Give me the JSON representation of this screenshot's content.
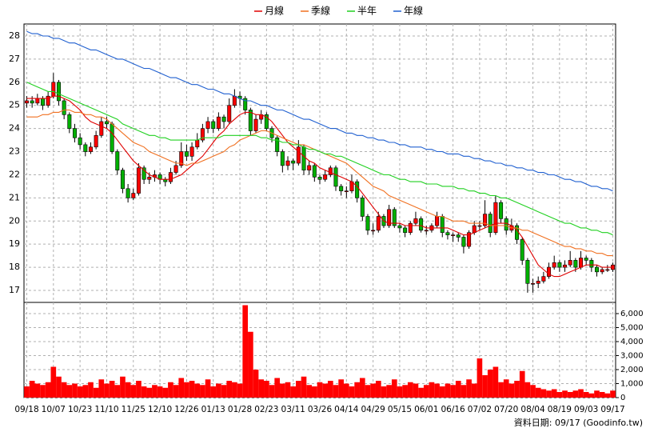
{
  "chart_data": {
    "type": "candlestick",
    "categories": [
      "09/18",
      null,
      null,
      null,
      null,
      "10/07",
      null,
      null,
      null,
      null,
      "10/23",
      null,
      null,
      null,
      null,
      "11/10",
      null,
      null,
      null,
      null,
      "11/25",
      null,
      null,
      null,
      null,
      "12/10",
      null,
      null,
      null,
      null,
      "12/26",
      null,
      null,
      null,
      null,
      "01/13",
      null,
      null,
      null,
      null,
      "01/28",
      null,
      null,
      null,
      null,
      "02/23",
      null,
      null,
      null,
      null,
      "03/11",
      null,
      null,
      null,
      null,
      "03/26",
      null,
      null,
      null,
      null,
      "04/14",
      null,
      null,
      null,
      null,
      "04/29",
      null,
      null,
      null,
      null,
      "05/15",
      null,
      null,
      null,
      null,
      "06/01",
      null,
      null,
      null,
      null,
      "06/16",
      null,
      null,
      null,
      null,
      "07/02",
      null,
      null,
      null,
      null,
      "07/20",
      null,
      null,
      null,
      null,
      "08/04",
      null,
      null,
      null,
      null,
      "08/19",
      null,
      null,
      null,
      null,
      "09/03",
      null,
      null,
      null,
      null,
      "09/17"
    ],
    "candles": [
      [
        25.1,
        25.4,
        24.9,
        25.2
      ],
      [
        25.2,
        25.4,
        24.9,
        25.1
      ],
      [
        25.1,
        25.5,
        25.0,
        25.3
      ],
      [
        25.3,
        25.4,
        24.8,
        25.0
      ],
      [
        25.0,
        25.6,
        24.9,
        25.4
      ],
      [
        25.4,
        26.4,
        25.3,
        26.0
      ],
      [
        26.0,
        26.1,
        25.0,
        25.2
      ],
      [
        25.2,
        25.3,
        24.4,
        24.6
      ],
      [
        24.6,
        24.7,
        23.8,
        24.0
      ],
      [
        24.0,
        24.2,
        23.4,
        23.6
      ],
      [
        23.6,
        23.8,
        23.1,
        23.3
      ],
      [
        23.3,
        23.4,
        22.8,
        23.0
      ],
      [
        23.0,
        23.4,
        22.9,
        23.2
      ],
      [
        23.2,
        23.9,
        23.1,
        23.7
      ],
      [
        23.7,
        24.5,
        23.6,
        24.3
      ],
      [
        24.3,
        24.5,
        24.0,
        24.2
      ],
      [
        24.2,
        24.3,
        22.9,
        23.0
      ],
      [
        23.0,
        23.1,
        22.0,
        22.2
      ],
      [
        22.2,
        22.3,
        21.2,
        21.4
      ],
      [
        21.4,
        21.6,
        20.8,
        21.0
      ],
      [
        21.0,
        21.4,
        20.9,
        21.2
      ],
      [
        21.2,
        22.5,
        21.1,
        22.3
      ],
      [
        22.3,
        22.4,
        21.6,
        21.8
      ],
      [
        21.8,
        22.1,
        21.6,
        21.9
      ],
      [
        21.9,
        22.2,
        21.7,
        22.0
      ],
      [
        22.0,
        22.1,
        21.6,
        21.8
      ],
      [
        21.8,
        21.9,
        21.5,
        21.7
      ],
      [
        21.7,
        22.3,
        21.6,
        22.1
      ],
      [
        22.1,
        22.6,
        22.0,
        22.4
      ],
      [
        22.4,
        23.4,
        22.3,
        23.0
      ],
      [
        23.0,
        23.3,
        22.6,
        22.8
      ],
      [
        22.8,
        23.4,
        22.6,
        23.2
      ],
      [
        23.2,
        23.8,
        23.1,
        23.5
      ],
      [
        23.5,
        24.2,
        23.4,
        24.0
      ],
      [
        24.0,
        24.5,
        23.8,
        24.3
      ],
      [
        24.3,
        24.4,
        23.8,
        24.0
      ],
      [
        24.0,
        24.7,
        23.9,
        24.5
      ],
      [
        24.5,
        24.6,
        24.0,
        24.3
      ],
      [
        24.3,
        25.3,
        24.2,
        25.0
      ],
      [
        25.0,
        25.7,
        24.9,
        25.4
      ],
      [
        25.4,
        25.6,
        25.0,
        25.3
      ],
      [
        25.3,
        25.4,
        24.6,
        24.8
      ],
      [
        24.8,
        24.9,
        23.7,
        23.9
      ],
      [
        23.9,
        24.6,
        23.8,
        24.4
      ],
      [
        24.4,
        24.8,
        24.2,
        24.6
      ],
      [
        24.6,
        24.7,
        23.9,
        24.0
      ],
      [
        24.0,
        24.1,
        23.4,
        23.6
      ],
      [
        23.6,
        23.7,
        22.8,
        23.0
      ],
      [
        23.0,
        23.1,
        22.1,
        22.4
      ],
      [
        22.4,
        22.8,
        22.2,
        22.6
      ],
      [
        22.6,
        22.7,
        22.2,
        22.5
      ],
      [
        22.5,
        23.5,
        22.4,
        23.2
      ],
      [
        23.2,
        23.3,
        22.0,
        22.2
      ],
      [
        22.2,
        22.6,
        22.0,
        22.4
      ],
      [
        22.4,
        22.5,
        21.7,
        21.9
      ],
      [
        21.9,
        22.0,
        21.6,
        21.8
      ],
      [
        21.8,
        22.2,
        21.7,
        22.0
      ],
      [
        22.0,
        22.4,
        21.9,
        22.3
      ],
      [
        22.3,
        22.4,
        21.3,
        21.5
      ],
      [
        21.5,
        21.6,
        21.1,
        21.3
      ],
      [
        21.3,
        21.5,
        21.0,
        21.3
      ],
      [
        21.3,
        22.0,
        21.2,
        21.7
      ],
      [
        21.7,
        21.8,
        20.8,
        21.0
      ],
      [
        21.0,
        21.1,
        20.0,
        20.2
      ],
      [
        20.2,
        20.3,
        19.4,
        19.6
      ],
      [
        19.6,
        19.9,
        19.4,
        19.6
      ],
      [
        19.6,
        20.4,
        19.5,
        20.2
      ],
      [
        20.2,
        20.3,
        19.7,
        19.8
      ],
      [
        19.8,
        20.7,
        19.7,
        20.5
      ],
      [
        20.5,
        20.6,
        19.7,
        19.8
      ],
      [
        19.8,
        19.9,
        19.5,
        19.7
      ],
      [
        19.7,
        19.8,
        19.3,
        19.5
      ],
      [
        19.5,
        20.0,
        19.4,
        19.9
      ],
      [
        19.9,
        20.4,
        19.8,
        20.1
      ],
      [
        20.1,
        20.2,
        19.5,
        19.6
      ],
      [
        19.6,
        19.8,
        19.4,
        19.6
      ],
      [
        19.6,
        19.9,
        19.5,
        19.8
      ],
      [
        19.8,
        20.4,
        19.7,
        20.2
      ],
      [
        20.2,
        20.3,
        19.3,
        19.5
      ],
      [
        19.5,
        19.6,
        19.2,
        19.4
      ],
      [
        19.4,
        19.5,
        19.1,
        19.4
      ],
      [
        19.4,
        19.5,
        19.1,
        19.3
      ],
      [
        19.3,
        19.4,
        18.6,
        18.9
      ],
      [
        18.9,
        19.6,
        18.8,
        19.5
      ],
      [
        19.5,
        20.0,
        19.4,
        19.8
      ],
      [
        19.8,
        20.0,
        19.6,
        19.8
      ],
      [
        19.8,
        20.9,
        19.7,
        20.3
      ],
      [
        20.3,
        20.4,
        19.3,
        19.5
      ],
      [
        19.5,
        21.1,
        19.4,
        20.8
      ],
      [
        20.8,
        20.9,
        19.9,
        20.1
      ],
      [
        20.1,
        20.2,
        19.4,
        19.6
      ],
      [
        19.6,
        20.1,
        19.5,
        19.8
      ],
      [
        19.8,
        19.9,
        19.0,
        19.2
      ],
      [
        19.2,
        19.3,
        18.1,
        18.3
      ],
      [
        18.3,
        18.4,
        16.9,
        17.3
      ],
      [
        17.3,
        17.5,
        16.9,
        17.3
      ],
      [
        17.3,
        17.6,
        17.1,
        17.4
      ],
      [
        17.4,
        17.8,
        17.3,
        17.6
      ],
      [
        17.6,
        18.2,
        17.5,
        18.0
      ],
      [
        18.0,
        18.5,
        17.9,
        18.2
      ],
      [
        18.2,
        18.3,
        17.8,
        18.0
      ],
      [
        18.0,
        18.3,
        17.8,
        18.1
      ],
      [
        18.1,
        18.7,
        18.0,
        18.3
      ],
      [
        18.3,
        18.4,
        17.8,
        18.0
      ],
      [
        18.0,
        18.7,
        17.9,
        18.4
      ],
      [
        18.4,
        18.5,
        18.1,
        18.3
      ],
      [
        18.3,
        18.4,
        17.8,
        18.0
      ],
      [
        18.0,
        18.1,
        17.6,
        17.8
      ],
      [
        17.8,
        18.0,
        17.7,
        17.9
      ],
      [
        17.9,
        18.1,
        17.8,
        17.9
      ],
      [
        17.9,
        18.2,
        17.8,
        18.1
      ]
    ],
    "up_color": "#ff0000",
    "down_color": "#00b000",
    "series": [
      {
        "name": "月線",
        "color": "#e00000",
        "values": [
          25.3,
          25.3,
          25.3,
          25.3,
          25.3,
          25.4,
          25.4,
          25.3,
          25.2,
          25.0,
          24.8,
          24.5,
          24.3,
          24.2,
          24.1,
          24.0,
          23.8,
          23.5,
          23.2,
          22.9,
          22.6,
          22.4,
          22.2,
          22.0,
          21.9,
          21.8,
          21.8,
          21.8,
          21.9,
          22.0,
          22.2,
          22.4,
          22.6,
          22.8,
          23.1,
          23.4,
          23.7,
          23.9,
          24.2,
          24.4,
          24.6,
          24.7,
          24.7,
          24.6,
          24.6,
          24.5,
          24.3,
          24.0,
          23.7,
          23.4,
          23.2,
          23.0,
          22.8,
          22.6,
          22.5,
          22.3,
          22.2,
          22.1,
          22.0,
          21.9,
          21.8,
          21.7,
          21.5,
          21.2,
          20.9,
          20.6,
          20.3,
          20.0,
          19.9,
          19.9,
          19.9,
          19.8,
          19.8,
          19.8,
          19.8,
          19.7,
          19.7,
          19.7,
          19.7,
          19.7,
          19.6,
          19.5,
          19.4,
          19.4,
          19.5,
          19.6,
          19.7,
          19.8,
          19.9,
          19.9,
          19.9,
          19.8,
          19.6,
          19.3,
          18.9,
          18.5,
          18.1,
          17.9,
          17.7,
          17.6,
          17.6,
          17.7,
          17.8,
          17.9,
          18.0,
          18.1,
          18.1,
          18.1,
          18.0,
          18.0,
          18.0
        ]
      },
      {
        "name": "季線",
        "color": "#f07020",
        "values": [
          24.5,
          24.5,
          24.5,
          24.6,
          24.6,
          24.7,
          24.7,
          24.8,
          24.8,
          24.7,
          24.7,
          24.6,
          24.6,
          24.5,
          24.5,
          24.4,
          24.2,
          24.0,
          23.8,
          23.6,
          23.4,
          23.3,
          23.2,
          23.0,
          22.9,
          22.8,
          22.7,
          22.6,
          22.5,
          22.5,
          22.4,
          22.5,
          22.5,
          22.6,
          22.7,
          22.8,
          22.9,
          23.0,
          23.2,
          23.3,
          23.5,
          23.6,
          23.7,
          23.8,
          23.9,
          23.9,
          23.8,
          23.7,
          23.6,
          23.5,
          23.4,
          23.3,
          23.3,
          23.2,
          23.1,
          23.0,
          22.9,
          22.8,
          22.7,
          22.6,
          22.5,
          22.3,
          22.1,
          21.9,
          21.7,
          21.5,
          21.4,
          21.3,
          21.1,
          21.0,
          20.9,
          20.8,
          20.7,
          20.6,
          20.5,
          20.4,
          20.3,
          20.2,
          20.2,
          20.1,
          20.0,
          20.0,
          20.0,
          19.9,
          19.9,
          19.9,
          19.9,
          19.8,
          19.8,
          19.8,
          19.8,
          19.7,
          19.7,
          19.6,
          19.6,
          19.5,
          19.4,
          19.3,
          19.2,
          19.1,
          19.0,
          18.9,
          18.9,
          18.8,
          18.8,
          18.7,
          18.7,
          18.6,
          18.6,
          18.5,
          18.5
        ]
      },
      {
        "name": "半年",
        "color": "#20d020",
        "values": [
          26.0,
          25.9,
          25.8,
          25.7,
          25.6,
          25.6,
          25.5,
          25.4,
          25.3,
          25.2,
          25.1,
          25.0,
          24.9,
          24.8,
          24.7,
          24.6,
          24.5,
          24.4,
          24.2,
          24.1,
          24.0,
          23.9,
          23.8,
          23.7,
          23.7,
          23.6,
          23.6,
          23.5,
          23.5,
          23.5,
          23.5,
          23.5,
          23.5,
          23.6,
          23.6,
          23.6,
          23.6,
          23.7,
          23.7,
          23.7,
          23.7,
          23.7,
          23.7,
          23.7,
          23.6,
          23.6,
          23.5,
          23.5,
          23.4,
          23.4,
          23.3,
          23.3,
          23.2,
          23.1,
          23.1,
          23.0,
          22.9,
          22.9,
          22.8,
          22.8,
          22.7,
          22.6,
          22.5,
          22.4,
          22.3,
          22.2,
          22.1,
          22.0,
          22.0,
          21.9,
          21.8,
          21.8,
          21.7,
          21.7,
          21.7,
          21.6,
          21.6,
          21.6,
          21.5,
          21.5,
          21.5,
          21.4,
          21.4,
          21.3,
          21.3,
          21.2,
          21.2,
          21.1,
          21.1,
          21.0,
          21.0,
          20.9,
          20.8,
          20.7,
          20.6,
          20.5,
          20.4,
          20.3,
          20.2,
          20.1,
          20.0,
          19.9,
          19.9,
          19.8,
          19.7,
          19.7,
          19.6,
          19.6,
          19.5,
          19.5,
          19.4
        ]
      },
      {
        "name": "年線",
        "color": "#2060d0",
        "values": [
          28.2,
          28.1,
          28.1,
          28.0,
          28.0,
          27.9,
          27.9,
          27.8,
          27.7,
          27.7,
          27.6,
          27.5,
          27.4,
          27.4,
          27.3,
          27.2,
          27.1,
          27.0,
          27.0,
          26.9,
          26.8,
          26.7,
          26.6,
          26.6,
          26.5,
          26.4,
          26.3,
          26.2,
          26.2,
          26.1,
          26.0,
          25.9,
          25.9,
          25.8,
          25.7,
          25.7,
          25.6,
          25.5,
          25.5,
          25.4,
          25.3,
          25.2,
          25.2,
          25.1,
          25.0,
          25.0,
          24.9,
          24.8,
          24.8,
          24.7,
          24.6,
          24.5,
          24.4,
          24.4,
          24.3,
          24.2,
          24.1,
          24.0,
          24.0,
          23.9,
          23.8,
          23.8,
          23.7,
          23.7,
          23.6,
          23.6,
          23.5,
          23.5,
          23.4,
          23.4,
          23.3,
          23.3,
          23.2,
          23.2,
          23.2,
          23.1,
          23.1,
          23.0,
          23.0,
          22.9,
          22.9,
          22.9,
          22.8,
          22.8,
          22.7,
          22.7,
          22.6,
          22.6,
          22.5,
          22.5,
          22.4,
          22.4,
          22.3,
          22.3,
          22.2,
          22.2,
          22.1,
          22.1,
          22.0,
          22.0,
          21.9,
          21.8,
          21.8,
          21.7,
          21.7,
          21.6,
          21.5,
          21.5,
          21.4,
          21.4,
          21.3
        ]
      }
    ],
    "volume": {
      "axis": "y2",
      "color": "#ff0000",
      "values": [
        800,
        1200,
        1000,
        900,
        1100,
        2200,
        1500,
        1100,
        900,
        1000,
        800,
        900,
        1100,
        700,
        1300,
        1000,
        1200,
        900,
        1500,
        1100,
        900,
        1200,
        800,
        700,
        900,
        800,
        700,
        1100,
        900,
        1400,
        1100,
        1200,
        1000,
        900,
        1300,
        800,
        1000,
        900,
        1200,
        1100,
        1000,
        6600,
        4700,
        2000,
        1300,
        1200,
        900,
        1400,
        1000,
        1100,
        800,
        1200,
        1500,
        900,
        800,
        1100,
        1000,
        1200,
        900,
        1300,
        1000,
        800,
        1100,
        1400,
        900,
        1000,
        1200,
        800,
        900,
        1300,
        800,
        900,
        1100,
        1000,
        700,
        900,
        1100,
        1000,
        800,
        1000,
        900,
        1200,
        900,
        1300,
        1000,
        2800,
        1600,
        2000,
        2200,
        1100,
        1300,
        1000,
        1200,
        1900,
        1100,
        900,
        700,
        600,
        500,
        600,
        400,
        500,
        400,
        500,
        600,
        400,
        300,
        500,
        400,
        300,
        500
      ]
    },
    "ylim": [
      16.48,
      28.52
    ],
    "yticks": [
      17,
      18,
      19,
      20,
      21,
      22,
      23,
      24,
      25,
      26,
      27,
      28
    ],
    "y2lim": [
      0,
      6800
    ],
    "y2ticks": [
      0,
      {
        "value": 1000,
        "label": "1,000"
      },
      {
        "value": 2000,
        "label": "2,000"
      },
      {
        "value": 3000,
        "label": "3,000"
      },
      {
        "value": 4000,
        "label": "4,000"
      },
      {
        "value": 5000,
        "label": "5,000"
      },
      {
        "value": 6000,
        "label": "6,000"
      }
    ],
    "grid": true,
    "footnote": "資料日期: 09/17 (Goodinfo.tw)"
  }
}
